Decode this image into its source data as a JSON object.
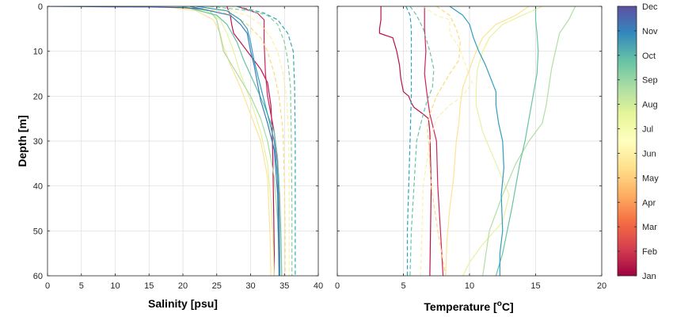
{
  "chart_data": [
    {
      "type": "line",
      "xlabel": "Salinity [psu]",
      "ylabel": "Depth [m]",
      "xlim": [
        0,
        40
      ],
      "ylim": [
        60,
        0
      ],
      "xticks": [
        0,
        5,
        10,
        15,
        20,
        25,
        30,
        35,
        40
      ],
      "yticks": [
        0,
        10,
        20,
        30,
        40,
        50,
        60
      ],
      "grid": true,
      "series": [
        {
          "month": 1,
          "color": "#c0124f",
          "dashed": false,
          "x": [
            26.5,
            27.0,
            27.2,
            27.5,
            28.5,
            30.0,
            31.5,
            32.5,
            33.0,
            33.2,
            33.3,
            33.4,
            33.5,
            33.5
          ],
          "y": [
            0,
            2,
            4,
            6,
            8,
            11,
            14,
            17,
            22,
            28,
            35,
            45,
            55,
            60
          ]
        },
        {
          "month": 2,
          "color": "#d0245a",
          "dashed": false,
          "x": [
            28.0,
            31.0,
            32.0,
            32.0,
            32.2,
            32.5,
            33.0,
            33.5,
            34.0,
            34.2,
            34.3,
            34.3
          ],
          "y": [
            0,
            1.5,
            3,
            8,
            15,
            20,
            24,
            28,
            35,
            45,
            55,
            60
          ]
        },
        {
          "month": 6,
          "color": "#fbd97a",
          "dashed": true,
          "x": [
            19.5,
            25.0,
            27.5,
            29.5,
            31.5,
            32.5,
            33.5,
            34.2,
            34.8,
            35.0,
            35.1,
            35.1
          ],
          "y": [
            0,
            1,
            2,
            4,
            7,
            10,
            15,
            20,
            28,
            40,
            50,
            60
          ]
        },
        {
          "month": 7,
          "color": "#fdf0a0",
          "dashed": true,
          "x": [
            22.0,
            27.0,
            29.5,
            31.5,
            33.0,
            34.0,
            34.8,
            35.3,
            35.6,
            35.7,
            35.7,
            35.7
          ],
          "y": [
            0,
            1,
            2,
            4,
            7,
            10,
            15,
            20,
            28,
            40,
            50,
            60
          ]
        },
        {
          "month": 10,
          "color": "#7dcf9c",
          "dashed": true,
          "x": [
            24.0,
            30.0,
            32.5,
            34.0,
            35.0,
            35.5,
            35.9,
            36.0,
            36.1,
            36.1
          ],
          "y": [
            0,
            1,
            2,
            4,
            8,
            12,
            18,
            28,
            45,
            60
          ]
        },
        {
          "month": 11,
          "color": "#34a5b0",
          "dashed": true,
          "x": [
            28.0,
            32.0,
            34.0,
            35.5,
            36.3,
            36.5,
            36.6,
            36.6,
            36.6
          ],
          "y": [
            0,
            1.5,
            3,
            6,
            10,
            18,
            30,
            45,
            60
          ]
        },
        {
          "month": 7,
          "color": "#fce49a",
          "dashed": false,
          "x": [
            17.0,
            22.0,
            24.5,
            25.5,
            26.0,
            27.0,
            28.5,
            30.0,
            31.5,
            32.5,
            32.7,
            32.9,
            33.0
          ],
          "y": [
            0,
            1,
            3,
            6,
            9,
            13,
            18,
            24,
            30,
            38,
            45,
            52,
            60
          ]
        },
        {
          "month": 8,
          "color": "#e6f2a0",
          "dashed": false,
          "x": [
            18.0,
            23.5,
            25.5,
            26.5,
            27.5,
            28.5,
            30.0,
            31.5,
            32.5,
            33.0,
            33.3,
            33.5
          ],
          "y": [
            0,
            1,
            3,
            6,
            10,
            15,
            21,
            28,
            35,
            43,
            52,
            60
          ]
        },
        {
          "month": 9,
          "color": "#a8dba4",
          "dashed": false,
          "x": [
            19.0,
            24.0,
            25.0,
            25.3,
            26.0,
            28.0,
            30.0,
            31.5,
            32.5,
            33.5,
            34.0,
            34.3
          ],
          "y": [
            0,
            1,
            3,
            5,
            10,
            15,
            20,
            25,
            30,
            38,
            48,
            60
          ]
        },
        {
          "month": 10,
          "color": "#66c4a4",
          "dashed": false,
          "x": [
            20.0,
            25.0,
            26.5,
            28.0,
            29.0,
            30.5,
            32.0,
            33.5,
            34.0,
            34.3,
            34.5,
            34.6
          ],
          "y": [
            0,
            2,
            4,
            8,
            12,
            17,
            22,
            28,
            34,
            42,
            52,
            60
          ]
        },
        {
          "month": 11,
          "color": "#2f9ec0",
          "dashed": false,
          "x": [
            22.0,
            26.5,
            28.5,
            29.5,
            30.0,
            30.5,
            31.5,
            32.5,
            33.5,
            34.0,
            34.2,
            34.3
          ],
          "y": [
            0,
            1,
            3,
            5,
            8,
            12,
            18,
            24,
            30,
            38,
            48,
            60
          ]
        },
        {
          "month": 12,
          "color": "#3a7cb8",
          "dashed": false,
          "x": [
            21.0,
            27.0,
            28.5,
            29.5,
            30.0,
            30.5,
            31.0,
            31.5,
            32.5,
            33.5,
            34.0,
            34.2
          ],
          "y": [
            0,
            2,
            4,
            6,
            10,
            13,
            17,
            21,
            26,
            32,
            42,
            60
          ]
        },
        {
          "month": 1,
          "color": "#3f63ac",
          "dashed": false,
          "x": [
            0.0,
            5.0,
            10.0,
            15.0,
            20.0,
            23.0
          ],
          "y": [
            0,
            0.05,
            0.1,
            0.15,
            0.3,
            0.6
          ]
        }
      ]
    },
    {
      "type": "line",
      "xlabel": "Temperature [°C]",
      "xlabel_main": "Temperature [",
      "xlabel_sup": "o",
      "xlabel_end": "C]",
      "xlim": [
        0,
        20
      ],
      "ylim": [
        60,
        0
      ],
      "xticks": [
        0,
        5,
        10,
        15,
        20
      ],
      "yticks": [
        0,
        10,
        20,
        30,
        40,
        50,
        60
      ],
      "grid": true,
      "series": [
        {
          "month": 1,
          "color": "#b8104b",
          "dashed": false,
          "x": [
            3.3,
            3.3,
            3.2,
            3.2,
            4.2,
            4.5,
            4.7,
            4.8,
            5.0,
            5.4,
            5.6,
            5.8,
            6.5,
            6.9,
            7.0,
            7.1,
            7.0
          ],
          "y": [
            0,
            3,
            5,
            6,
            7,
            10,
            13,
            16,
            19,
            20,
            21.5,
            22.5,
            24,
            25,
            28,
            40,
            60
          ]
        },
        {
          "month": 2,
          "color": "#d0245a",
          "dashed": false,
          "x": [
            6.6,
            6.6,
            6.7,
            6.6,
            6.8,
            7.0,
            7.5,
            7.6,
            7.8,
            8.0
          ],
          "y": [
            0,
            5,
            10,
            15,
            20,
            24,
            30,
            40,
            50,
            60
          ]
        },
        {
          "month": 6,
          "color": "#fbd97a",
          "dashed": true,
          "x": [
            7.5,
            8.5,
            9.0,
            9.3,
            9.2,
            8.5,
            7.5,
            7.0,
            6.8,
            6.9,
            7.1,
            7.6,
            8.2
          ],
          "y": [
            0,
            2,
            5,
            8,
            12,
            15,
            20,
            24,
            27,
            30,
            40,
            50,
            60
          ]
        },
        {
          "month": 7,
          "color": "#f8f2b0",
          "dashed": true,
          "x": [
            6.5,
            7.5,
            8.5,
            8.5,
            9.2,
            10.2,
            9.5,
            8.5,
            7.5,
            7.0,
            6.5,
            6.4,
            6.3
          ],
          "y": [
            0,
            2,
            3,
            6,
            9,
            17,
            20,
            22,
            25,
            30,
            40,
            50,
            60
          ]
        },
        {
          "month": 10,
          "color": "#66c4a4",
          "dashed": true,
          "x": [
            5.5,
            6.0,
            6.5,
            7.0,
            7.3,
            7.2,
            6.8,
            6.5,
            6.0,
            5.8,
            5.6,
            5.5
          ],
          "y": [
            0,
            2,
            5,
            10,
            14,
            18,
            21,
            24,
            30,
            40,
            50,
            60
          ]
        },
        {
          "month": 11,
          "color": "#2f9ec0",
          "dashed": true,
          "x": [
            5.2,
            5.5,
            5.6,
            5.6,
            5.6,
            5.5,
            5.4,
            5.3,
            5.3
          ],
          "y": [
            0,
            2,
            5,
            10,
            20,
            30,
            40,
            50,
            60
          ]
        },
        {
          "month": 7,
          "color": "#fde29a",
          "dashed": false,
          "x": [
            14.5,
            13.5,
            12.0,
            11.0,
            10.5,
            10.0,
            9.5,
            9.3,
            9.2,
            9.0,
            8.8,
            8.5,
            8.3,
            8.2
          ],
          "y": [
            0,
            2,
            4,
            7,
            10,
            14,
            18,
            22,
            26,
            30,
            38,
            45,
            52,
            60
          ]
        },
        {
          "month": 8,
          "color": "#e8f2a0",
          "dashed": false,
          "x": [
            15.5,
            14.0,
            12.5,
            11.5,
            11.0,
            10.6,
            10.5,
            10.5,
            11.0,
            12.0,
            13.0,
            12.5,
            11.0,
            10.0,
            9.5
          ],
          "y": [
            0,
            2,
            4,
            7,
            10,
            14,
            18,
            22,
            28,
            35,
            42,
            48,
            53,
            57,
            60
          ]
        },
        {
          "month": 9,
          "color": "#b2dea4",
          "dashed": false,
          "x": [
            18.0,
            17.5,
            16.8,
            16.5,
            16.2,
            16.0,
            15.8,
            15.5,
            14.5,
            13.5,
            12.5,
            11.5,
            11.0
          ],
          "y": [
            0,
            3,
            6,
            10,
            14,
            18,
            22,
            26,
            30,
            35,
            42,
            50,
            60
          ]
        },
        {
          "month": 10,
          "color": "#66c4a4",
          "dashed": false,
          "x": [
            15.0,
            15.0,
            15.1,
            15.2,
            15.1,
            14.8,
            14.5,
            14.2,
            13.8,
            13.2,
            12.5,
            12.0
          ],
          "y": [
            0,
            3,
            6,
            10,
            15,
            20,
            25,
            30,
            35,
            45,
            55,
            60
          ]
        },
        {
          "month": 11,
          "color": "#2f9ec0",
          "dashed": false,
          "x": [
            8.5,
            9.5,
            10.0,
            10.3,
            10.7,
            11.2,
            11.6,
            12.0,
            12.0,
            12.2,
            12.5,
            12.6,
            12.4,
            12.5,
            12.3,
            12.3
          ],
          "y": [
            0,
            2,
            4,
            7,
            10,
            13,
            16,
            19,
            22,
            26,
            30,
            36,
            42,
            50,
            55,
            60
          ]
        }
      ]
    }
  ],
  "colorbar": {
    "labels": [
      "Jan",
      "Feb",
      "Mar",
      "Apr",
      "May",
      "Jun",
      "Jul",
      "Aug",
      "Sep",
      "Oct",
      "Nov",
      "Dec"
    ],
    "colors": [
      "#9e0142",
      "#d53e4f",
      "#f46d43",
      "#fdae61",
      "#fee08b",
      "#ffffbf",
      "#e6f598",
      "#abdda4",
      "#66c2a5",
      "#3288bd",
      "#5e4fa2"
    ]
  }
}
